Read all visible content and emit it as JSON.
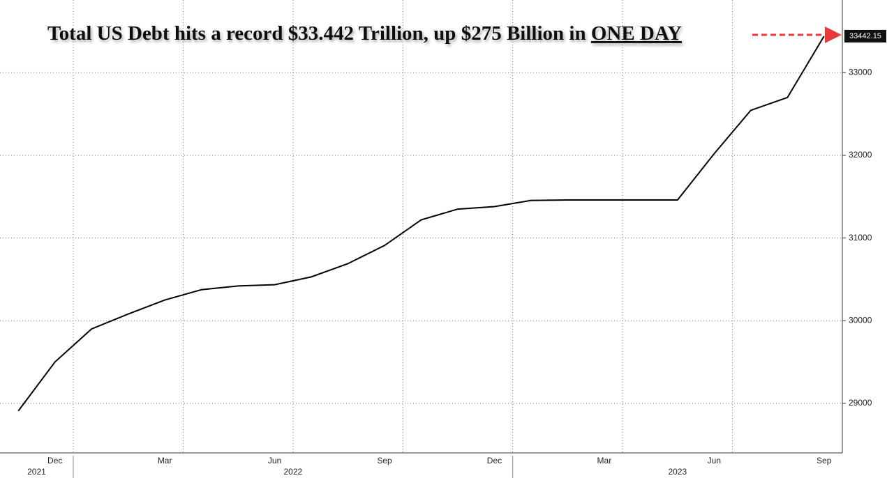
{
  "chart_data": {
    "type": "line",
    "title": "Total US Debt hits a record $33.442 Trillion, up $275 Billion in",
    "title_emphasis": "ONE DAY",
    "x": [
      "2021-11",
      "2021-12",
      "2022-01",
      "2022-02",
      "2022-03",
      "2022-04",
      "2022-05",
      "2022-06",
      "2022-07",
      "2022-08",
      "2022-09",
      "2022-10",
      "2022-11",
      "2022-12",
      "2023-01",
      "2023-02",
      "2023-03",
      "2023-04",
      "2023-05",
      "2023-06",
      "2023-07",
      "2023-08",
      "2023-09"
    ],
    "values": [
      28908,
      29500,
      29900,
      30080,
      30250,
      30375,
      30420,
      30435,
      30530,
      30690,
      30910,
      31220,
      31350,
      31380,
      31455,
      31460,
      31460,
      31460,
      31460,
      32020,
      32545,
      32700,
      33442.15
    ],
    "color": "#000000",
    "xlim": [
      "2021-11",
      "2023-10"
    ],
    "xticks": [
      {
        "value": "2021-12",
        "label": "Dec"
      },
      {
        "value": "2022-03",
        "label": "Mar"
      },
      {
        "value": "2022-06",
        "label": "Jun"
      },
      {
        "value": "2022-09",
        "label": "Sep"
      },
      {
        "value": "2022-12",
        "label": "Dec"
      },
      {
        "value": "2023-03",
        "label": "Mar"
      },
      {
        "value": "2023-06",
        "label": "Jun"
      },
      {
        "value": "2023-09",
        "label": "Sep"
      }
    ],
    "years": [
      "2021",
      "2022",
      "2023"
    ],
    "ylim": [
      28400,
      33880
    ],
    "yticks": [
      29000,
      30000,
      31000,
      32000,
      33000
    ],
    "grid": true,
    "y_axis_side": "right"
  }
}
